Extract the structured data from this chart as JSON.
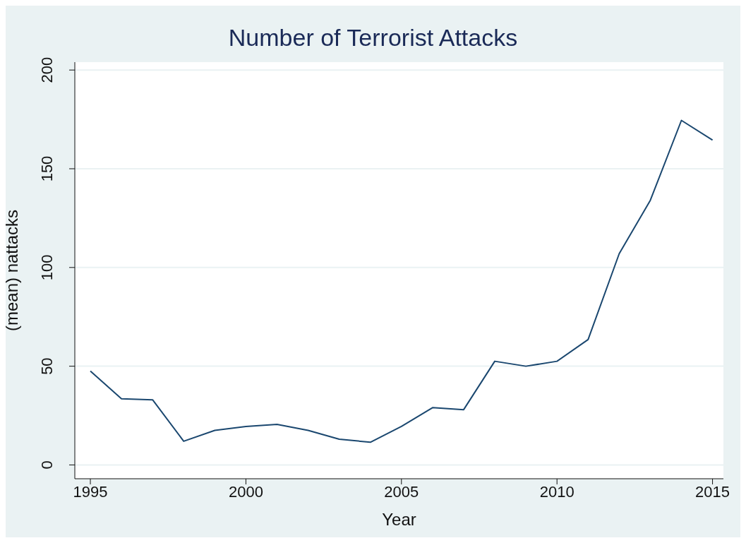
{
  "chart_data": {
    "type": "line",
    "title": "Number of Terrorist Attacks",
    "xlabel": "Year",
    "ylabel": "(mean) nattacks",
    "x": [
      1995,
      1996,
      1997,
      1998,
      1999,
      2000,
      2001,
      2002,
      2003,
      2004,
      2005,
      2006,
      2007,
      2008,
      2009,
      2010,
      2011,
      2012,
      2013,
      2014,
      2015
    ],
    "series": [
      {
        "color": "#1a476f",
        "values": [
          47.5,
          33.5,
          33,
          12,
          17.5,
          19.5,
          20.5,
          17.5,
          13,
          11.5,
          19.5,
          29,
          28,
          52.5,
          50,
          52.5,
          63.5,
          107,
          134,
          174.5,
          164.5
        ]
      }
    ],
    "xlim": [
      1994.5,
      2015.35
    ],
    "xticks": [
      1995,
      2000,
      2005,
      2010,
      2015
    ],
    "ylim": [
      -7,
      204
    ],
    "yticks": [
      0,
      50,
      100,
      150,
      200
    ],
    "grid": "y",
    "legend": false,
    "marker": "none",
    "line_style": "solid"
  }
}
